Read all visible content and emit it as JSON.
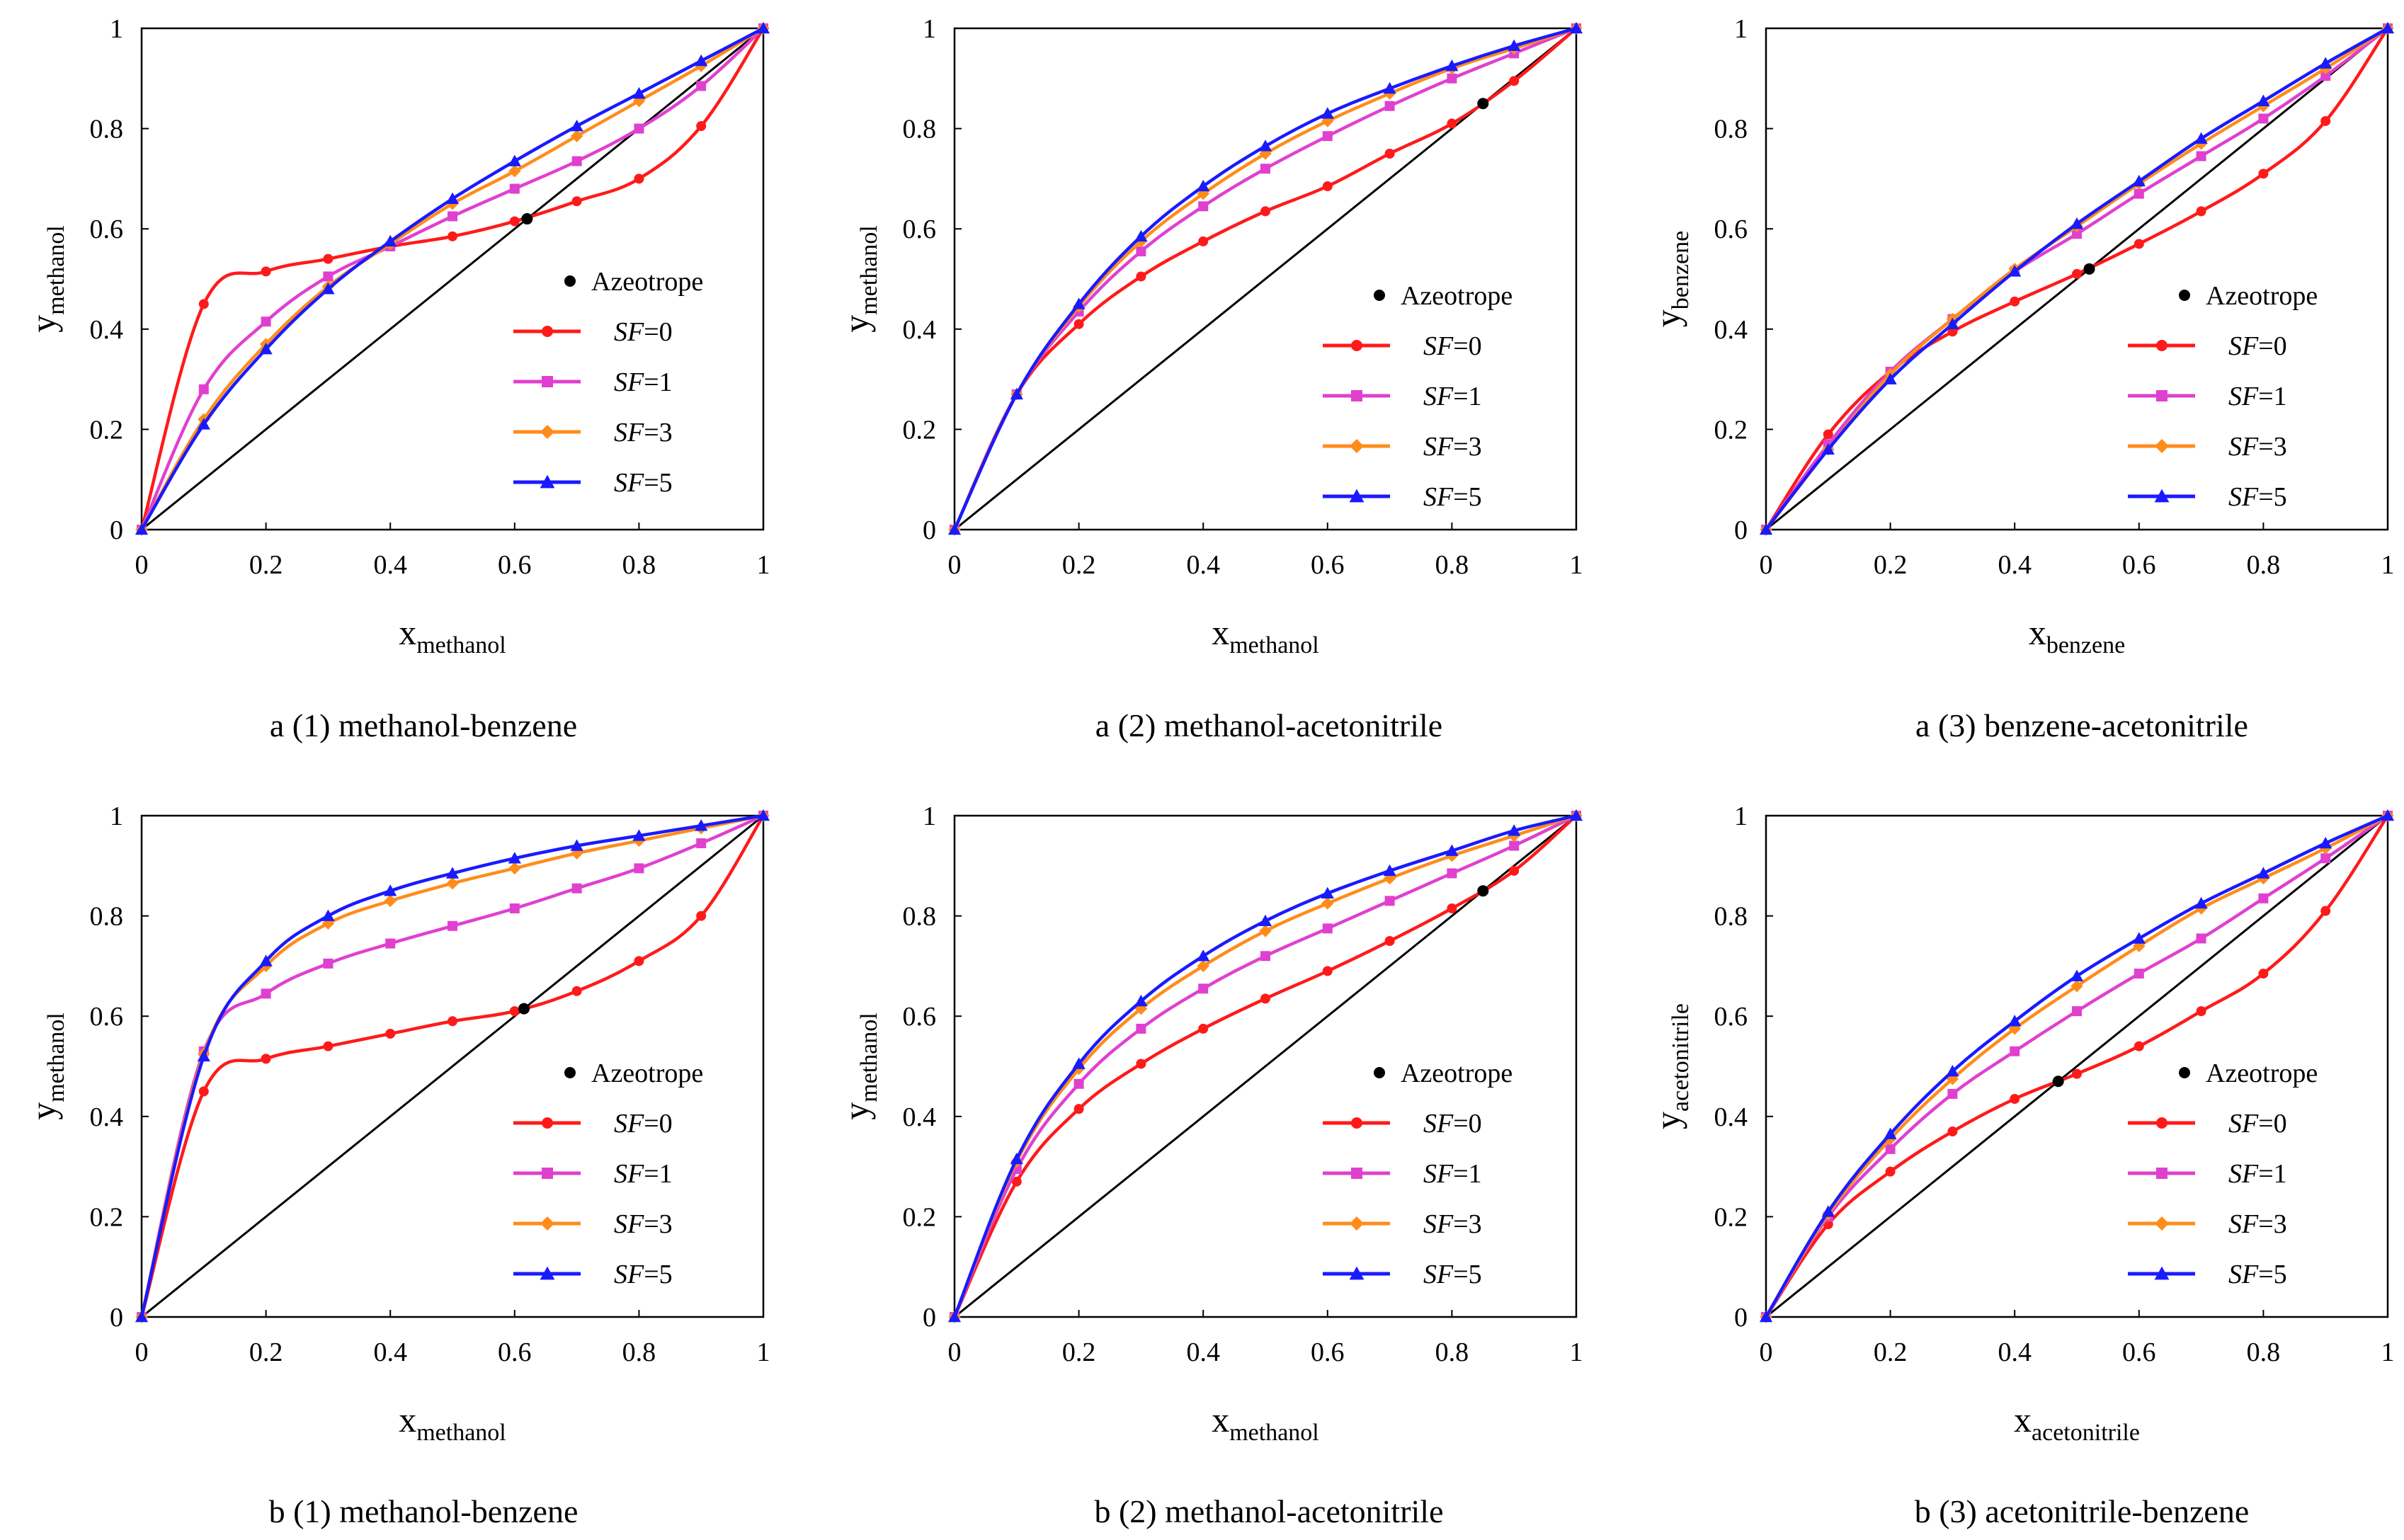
{
  "colors": {
    "sf0": "#ff1a1a",
    "sf1": "#e040d0",
    "sf3": "#ff8c1a",
    "sf5": "#1a1aff",
    "diagonal": "#000000",
    "azeotrope": "#000000"
  },
  "legend_entries": {
    "azeotrope": "Azeotrope",
    "sf_prefix": "SF",
    "sf0_suffix": "=0",
    "sf1_suffix": "=1",
    "sf3_suffix": "=3",
    "sf5_suffix": "=5"
  },
  "axis_symbols": {
    "x": "x",
    "y": "y"
  },
  "chart_data": [
    {
      "type": "line",
      "caption": "a (1) methanol-benzene",
      "xlabel_sub": "methanol",
      "ylabel_sub": "methanol",
      "xlim": [
        0,
        1
      ],
      "ylim": [
        0,
        1
      ],
      "x_ticks": [
        "0",
        "0.2",
        "0.4",
        "0.6",
        "0.8",
        "1"
      ],
      "y_ticks": [
        "0",
        "0.2",
        "0.4",
        "0.6",
        "0.8",
        "1"
      ],
      "legend_position": "lower-right",
      "x": [
        0,
        0.1,
        0.2,
        0.3,
        0.4,
        0.5,
        0.6,
        0.7,
        0.8,
        0.9,
        1.0
      ],
      "azeotrope": [
        0.62,
        0.62
      ],
      "series": [
        {
          "name": "SF=0",
          "key": "sf0",
          "marker": "circle",
          "values": [
            0,
            0.45,
            0.515,
            0.54,
            0.565,
            0.585,
            0.615,
            0.655,
            0.7,
            0.805,
            1.0
          ]
        },
        {
          "name": "SF=1",
          "key": "sf1",
          "marker": "square",
          "values": [
            0,
            0.28,
            0.415,
            0.505,
            0.565,
            0.625,
            0.68,
            0.735,
            0.8,
            0.885,
            1.0
          ]
        },
        {
          "name": "SF=3",
          "key": "sf3",
          "marker": "diamond",
          "values": [
            0,
            0.22,
            0.37,
            0.485,
            0.57,
            0.65,
            0.715,
            0.785,
            0.855,
            0.925,
            1.0
          ]
        },
        {
          "name": "SF=5",
          "key": "sf5",
          "marker": "triangle",
          "values": [
            0,
            0.21,
            0.36,
            0.48,
            0.575,
            0.66,
            0.735,
            0.805,
            0.87,
            0.935,
            1.0
          ]
        }
      ]
    },
    {
      "type": "line",
      "caption": "a (2) methanol-acetonitrile",
      "xlabel_sub": "methanol",
      "ylabel_sub": "methanol",
      "xlim": [
        0,
        1
      ],
      "ylim": [
        0,
        1
      ],
      "x_ticks": [
        "0",
        "0.2",
        "0.4",
        "0.6",
        "0.8",
        "1"
      ],
      "y_ticks": [
        "0",
        "0.2",
        "0.4",
        "0.6",
        "0.8",
        "1"
      ],
      "legend_position": "lower-right",
      "x": [
        0,
        0.1,
        0.2,
        0.3,
        0.4,
        0.5,
        0.6,
        0.7,
        0.8,
        0.9,
        1.0
      ],
      "azeotrope": [
        0.85,
        0.85
      ],
      "series": [
        {
          "name": "SF=0",
          "key": "sf0",
          "marker": "circle",
          "values": [
            0,
            0.27,
            0.41,
            0.505,
            0.575,
            0.635,
            0.685,
            0.75,
            0.81,
            0.895,
            1.0
          ]
        },
        {
          "name": "SF=1",
          "key": "sf1",
          "marker": "square",
          "values": [
            0,
            0.27,
            0.435,
            0.555,
            0.645,
            0.72,
            0.785,
            0.845,
            0.9,
            0.95,
            1.0
          ]
        },
        {
          "name": "SF=3",
          "key": "sf3",
          "marker": "diamond",
          "values": [
            0,
            0.27,
            0.445,
            0.575,
            0.67,
            0.75,
            0.815,
            0.87,
            0.92,
            0.96,
            1.0
          ]
        },
        {
          "name": "SF=5",
          "key": "sf5",
          "marker": "triangle",
          "values": [
            0,
            0.27,
            0.45,
            0.585,
            0.685,
            0.765,
            0.83,
            0.88,
            0.925,
            0.965,
            1.0
          ]
        }
      ]
    },
    {
      "type": "line",
      "caption": "a (3) benzene-acetonitrile",
      "xlabel_sub": "benzene",
      "ylabel_sub": "benzene",
      "xlim": [
        0,
        1
      ],
      "ylim": [
        0,
        1
      ],
      "x_ticks": [
        "0",
        "0.2",
        "0.4",
        "0.6",
        "0.8",
        "1"
      ],
      "y_ticks": [
        "0",
        "0.2",
        "0.4",
        "0.6",
        "0.8",
        "1"
      ],
      "legend_position": "lower-right",
      "x": [
        0,
        0.1,
        0.2,
        0.3,
        0.4,
        0.5,
        0.6,
        0.7,
        0.8,
        0.9,
        1.0
      ],
      "azeotrope": [
        0.52,
        0.52
      ],
      "series": [
        {
          "name": "SF=0",
          "key": "sf0",
          "marker": "circle",
          "values": [
            0,
            0.19,
            0.315,
            0.395,
            0.455,
            0.51,
            0.57,
            0.635,
            0.71,
            0.815,
            1.0
          ]
        },
        {
          "name": "SF=1",
          "key": "sf1",
          "marker": "square",
          "values": [
            0,
            0.17,
            0.315,
            0.42,
            0.515,
            0.59,
            0.67,
            0.745,
            0.82,
            0.905,
            1.0
          ]
        },
        {
          "name": "SF=3",
          "key": "sf3",
          "marker": "diamond",
          "values": [
            0,
            0.16,
            0.31,
            0.42,
            0.52,
            0.605,
            0.69,
            0.77,
            0.845,
            0.92,
            1.0
          ]
        },
        {
          "name": "SF=5",
          "key": "sf5",
          "marker": "triangle",
          "values": [
            0,
            0.16,
            0.3,
            0.41,
            0.515,
            0.61,
            0.695,
            0.78,
            0.855,
            0.93,
            1.0
          ]
        }
      ]
    },
    {
      "type": "line",
      "caption": "b (1) methanol-benzene",
      "xlabel_sub": "methanol",
      "ylabel_sub": "methanol",
      "xlim": [
        0,
        1
      ],
      "ylim": [
        0,
        1
      ],
      "x_ticks": [
        "0",
        "0.2",
        "0.4",
        "0.6",
        "0.8",
        "1"
      ],
      "y_ticks": [
        "0",
        "0.2",
        "0.4",
        "0.6",
        "0.8",
        "1"
      ],
      "legend_position": "lower-right",
      "x": [
        0,
        0.1,
        0.2,
        0.3,
        0.4,
        0.5,
        0.6,
        0.7,
        0.8,
        0.9,
        1.0
      ],
      "azeotrope": [
        0.615,
        0.615
      ],
      "series": [
        {
          "name": "SF=0",
          "key": "sf0",
          "marker": "circle",
          "values": [
            0,
            0.45,
            0.515,
            0.54,
            0.565,
            0.59,
            0.61,
            0.65,
            0.71,
            0.8,
            1.0
          ]
        },
        {
          "name": "SF=1",
          "key": "sf1",
          "marker": "square",
          "values": [
            0,
            0.53,
            0.645,
            0.705,
            0.745,
            0.78,
            0.815,
            0.855,
            0.895,
            0.945,
            1.0
          ]
        },
        {
          "name": "SF=3",
          "key": "sf3",
          "marker": "diamond",
          "values": [
            0,
            0.525,
            0.7,
            0.785,
            0.83,
            0.865,
            0.895,
            0.925,
            0.95,
            0.975,
            1.0
          ]
        },
        {
          "name": "SF=5",
          "key": "sf5",
          "marker": "triangle",
          "values": [
            0,
            0.52,
            0.71,
            0.8,
            0.85,
            0.885,
            0.915,
            0.94,
            0.96,
            0.98,
            1.0
          ]
        }
      ]
    },
    {
      "type": "line",
      "caption": "b (2) methanol-acetonitrile",
      "xlabel_sub": "methanol",
      "ylabel_sub": "methanol",
      "xlim": [
        0,
        1
      ],
      "ylim": [
        0,
        1
      ],
      "x_ticks": [
        "0",
        "0.2",
        "0.4",
        "0.6",
        "0.8",
        "1"
      ],
      "y_ticks": [
        "0",
        "0.2",
        "0.4",
        "0.6",
        "0.8",
        "1"
      ],
      "legend_position": "lower-right",
      "x": [
        0,
        0.1,
        0.2,
        0.3,
        0.4,
        0.5,
        0.6,
        0.7,
        0.8,
        0.9,
        1.0
      ],
      "azeotrope": [
        0.85,
        0.85
      ],
      "series": [
        {
          "name": "SF=0",
          "key": "sf0",
          "marker": "circle",
          "values": [
            0,
            0.27,
            0.415,
            0.505,
            0.575,
            0.635,
            0.69,
            0.75,
            0.815,
            0.89,
            1.0
          ]
        },
        {
          "name": "SF=1",
          "key": "sf1",
          "marker": "square",
          "values": [
            0,
            0.295,
            0.465,
            0.575,
            0.655,
            0.72,
            0.775,
            0.83,
            0.885,
            0.94,
            1.0
          ]
        },
        {
          "name": "SF=3",
          "key": "sf3",
          "marker": "diamond",
          "values": [
            0,
            0.31,
            0.495,
            0.615,
            0.7,
            0.77,
            0.825,
            0.875,
            0.92,
            0.96,
            1.0
          ]
        },
        {
          "name": "SF=5",
          "key": "sf5",
          "marker": "triangle",
          "values": [
            0,
            0.315,
            0.505,
            0.63,
            0.72,
            0.79,
            0.845,
            0.89,
            0.93,
            0.97,
            1.0
          ]
        }
      ]
    },
    {
      "type": "line",
      "caption": "b (3) acetonitrile-benzene",
      "xlabel_sub": "acetonitrile",
      "ylabel_sub": "acetonitrile",
      "xlim": [
        0,
        1
      ],
      "ylim": [
        0,
        1
      ],
      "x_ticks": [
        "0",
        "0.2",
        "0.4",
        "0.6",
        "0.8",
        "1"
      ],
      "y_ticks": [
        "0",
        "0.2",
        "0.4",
        "0.6",
        "0.8",
        "1"
      ],
      "legend_position": "lower-right",
      "x": [
        0,
        0.1,
        0.2,
        0.3,
        0.4,
        0.5,
        0.6,
        0.7,
        0.8,
        0.9,
        1.0
      ],
      "azeotrope": [
        0.47,
        0.47
      ],
      "series": [
        {
          "name": "SF=0",
          "key": "sf0",
          "marker": "circle",
          "values": [
            0,
            0.185,
            0.29,
            0.37,
            0.435,
            0.485,
            0.54,
            0.61,
            0.685,
            0.81,
            1.0
          ]
        },
        {
          "name": "SF=1",
          "key": "sf1",
          "marker": "square",
          "values": [
            0,
            0.2,
            0.335,
            0.445,
            0.53,
            0.61,
            0.685,
            0.755,
            0.835,
            0.915,
            1.0
          ]
        },
        {
          "name": "SF=3",
          "key": "sf3",
          "marker": "diamond",
          "values": [
            0,
            0.205,
            0.355,
            0.475,
            0.575,
            0.66,
            0.74,
            0.815,
            0.875,
            0.935,
            1.0
          ]
        },
        {
          "name": "SF=5",
          "key": "sf5",
          "marker": "triangle",
          "values": [
            0,
            0.21,
            0.365,
            0.49,
            0.59,
            0.68,
            0.755,
            0.825,
            0.885,
            0.945,
            1.0
          ]
        }
      ]
    }
  ]
}
